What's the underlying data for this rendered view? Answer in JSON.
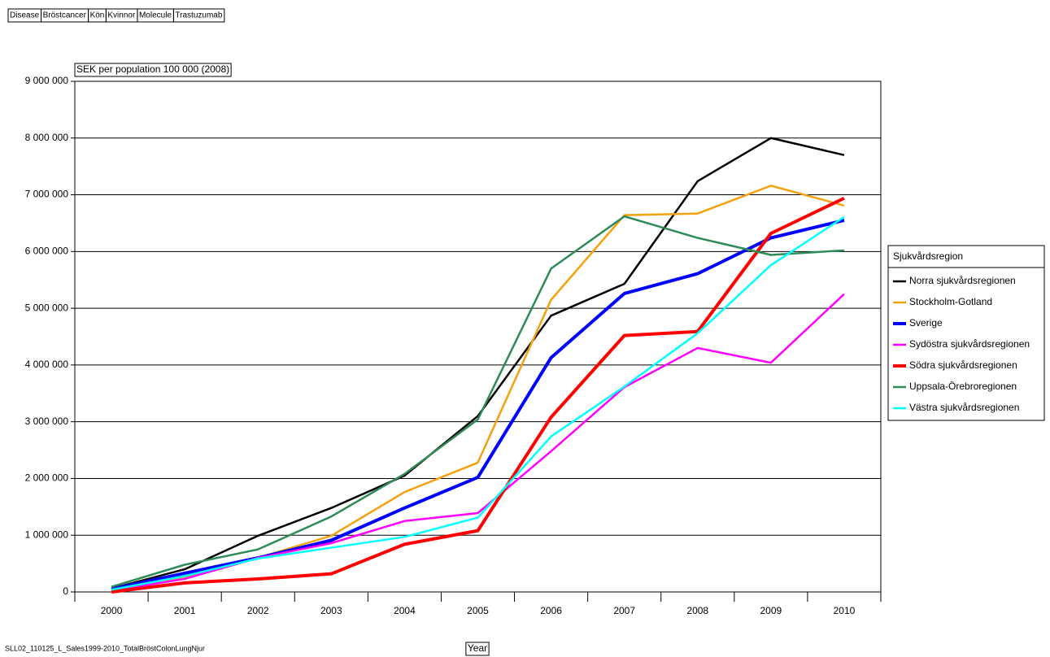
{
  "chart_data": {
    "type": "line",
    "filter_labels": [
      "Disease",
      "Bröstcancer",
      "Kön",
      "Kvinnor",
      "Molecule",
      "Trastuzumab"
    ],
    "y_label": "SEK per population 100 000 (2008)",
    "x_label": "Year",
    "source": "SLL02_110125_L_Sales1999-2010_TotalBröstColonLungNjur",
    "legend_title": "Sjukvårdsregion",
    "legend": "right",
    "grid": true,
    "categories": [
      "2000",
      "2001",
      "2002",
      "2003",
      "2004",
      "2005",
      "2006",
      "2007",
      "2008",
      "2009",
      "2010"
    ],
    "ylim": [
      0,
      9000000
    ],
    "yticks": [
      0,
      {
        "value": 1000000,
        "label": "1 000 000"
      },
      {
        "value": 2000000,
        "label": "2 000 000"
      },
      {
        "value": 3000000,
        "label": "3 000 000"
      },
      {
        "value": 4000000,
        "label": "4 000 000"
      },
      {
        "value": 5000000,
        "label": "5 000 000"
      },
      {
        "value": 6000000,
        "label": "6 000 000"
      },
      {
        "value": 7000000,
        "label": "7 000 000"
      },
      {
        "value": 8000000,
        "label": "8 000 000"
      },
      {
        "value": 9000000,
        "label": "9 000 000"
      }
    ],
    "series": [
      {
        "name": "Norra sjukvårdsregionen",
        "color": "#000000",
        "line_width": 2.5,
        "values": [
          60000,
          400000,
          990000,
          1480000,
          2050000,
          3100000,
          4870000,
          5430000,
          7240000,
          8000000,
          7700000
        ]
      },
      {
        "name": "Stockholm-Gotland",
        "color": "#f5a00f",
        "line_width": 2.5,
        "values": [
          50000,
          250000,
          600000,
          990000,
          1760000,
          2280000,
          5150000,
          6640000,
          6670000,
          7160000,
          6810000
        ]
      },
      {
        "name": "Sverige",
        "color": "#0000ff",
        "line_width": 4,
        "values": [
          50000,
          330000,
          600000,
          910000,
          1480000,
          2020000,
          4130000,
          5260000,
          5610000,
          6240000,
          6550000
        ]
      },
      {
        "name": "Sydöstra sjukvårdsregionen",
        "color": "#ff00ff",
        "line_width": 2.5,
        "values": [
          20000,
          230000,
          600000,
          860000,
          1250000,
          1390000,
          2480000,
          3610000,
          4300000,
          4040000,
          5250000
        ]
      },
      {
        "name": "Södra sjukvårdsregionen",
        "color": "#ff0000",
        "line_width": 4,
        "values": [
          0,
          160000,
          230000,
          320000,
          840000,
          1080000,
          3080000,
          4520000,
          4590000,
          6320000,
          6940000
        ]
      },
      {
        "name": "Uppsala-Örebroregionen",
        "color": "#2e8b57",
        "line_width": 2.5,
        "values": [
          90000,
          480000,
          750000,
          1330000,
          2080000,
          3040000,
          5700000,
          6620000,
          6240000,
          5940000,
          6020000
        ]
      },
      {
        "name": "Västra sjukvårdsregionen",
        "color": "#00ffff",
        "line_width": 2.5,
        "values": [
          40000,
          280000,
          590000,
          780000,
          970000,
          1310000,
          2740000,
          3620000,
          4560000,
          5760000,
          6610000
        ]
      }
    ]
  }
}
